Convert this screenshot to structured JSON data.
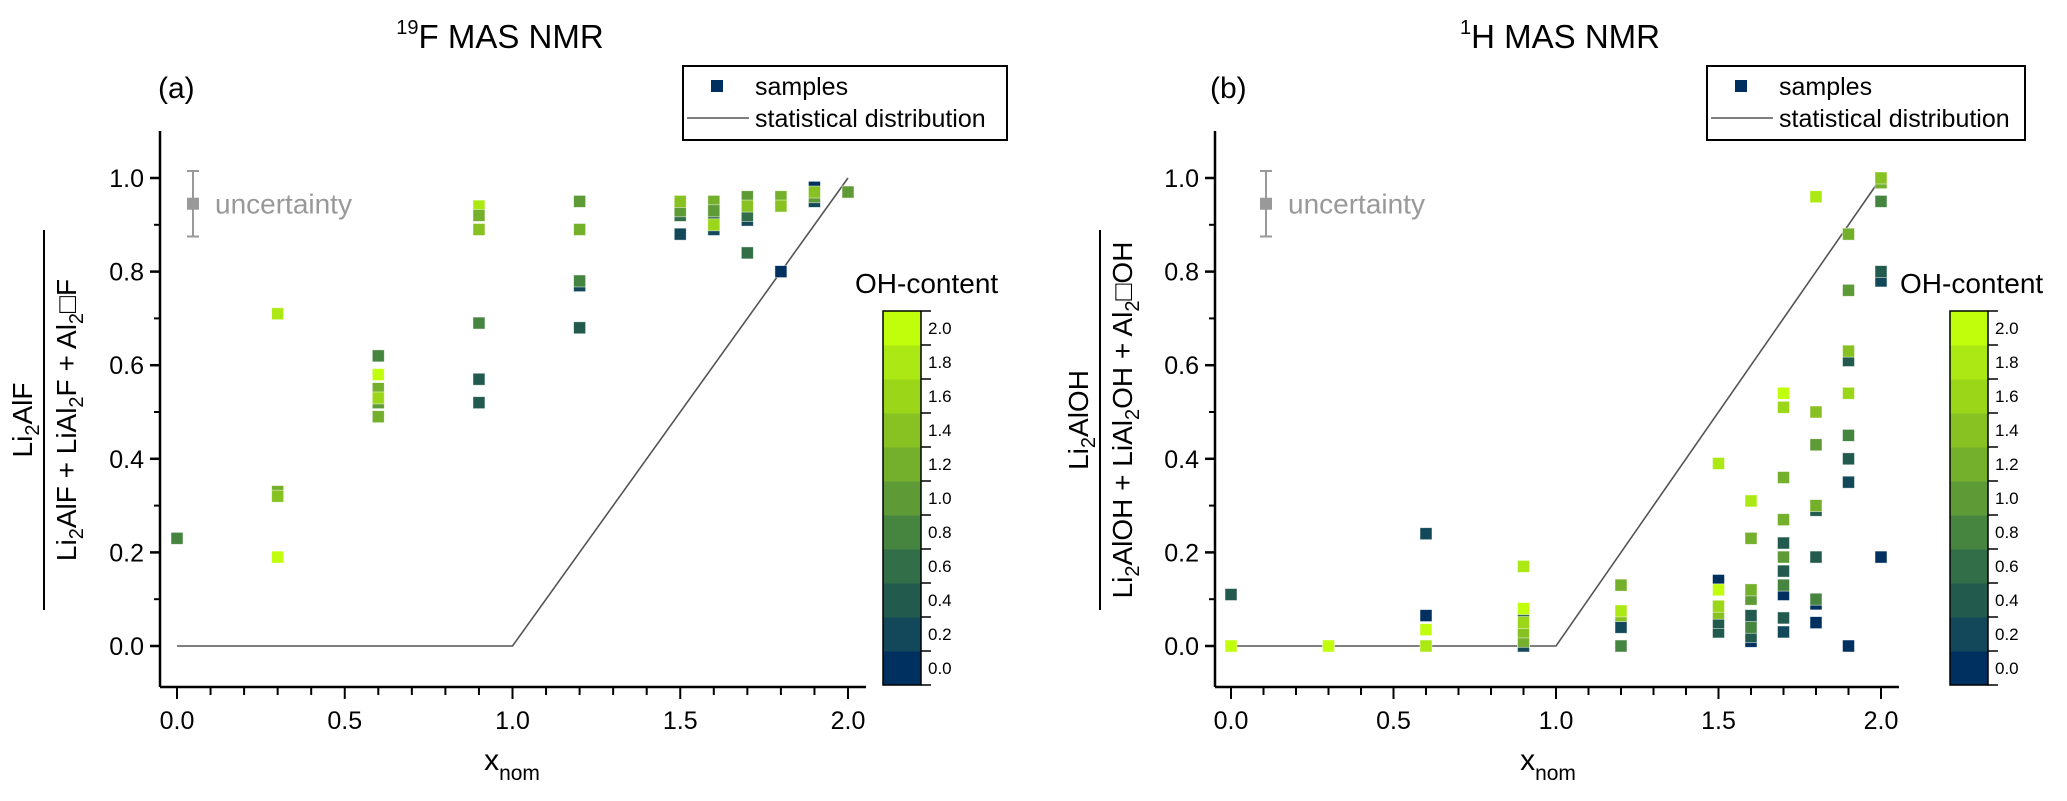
{
  "chart_data": [
    {
      "type": "scatter",
      "panel_label": "(a)",
      "title": "19F MAS NMR",
      "title_parts": {
        "sup": "19",
        "main": "F MAS NMR"
      },
      "xlabel": "x_nom",
      "xlabel_parts": {
        "main": "x",
        "sub": "nom"
      },
      "ylabel": "Li2AlF / (Li2AlF + LiAl2F + Al2□F)",
      "ylabel_parts": {
        "numerator": [
          {
            "t": "Li"
          },
          {
            "t": "2",
            "sub": true
          },
          {
            "t": "AlF"
          }
        ],
        "denominator": [
          {
            "t": "Li"
          },
          {
            "t": "2",
            "sub": true
          },
          {
            "t": "AlF + LiAl"
          },
          {
            "t": "2",
            "sub": true
          },
          {
            "t": "F + Al"
          },
          {
            "t": "2",
            "sub": true
          },
          {
            "t": "□F"
          }
        ]
      },
      "xlim": [
        -0.05,
        2.05
      ],
      "ylim": [
        -0.1,
        1.1
      ],
      "xticks": [
        0.0,
        0.5,
        1.0,
        1.5,
        2.0
      ],
      "xtick_labels": [
        "0.0",
        "0.5",
        "1.0",
        "1.5",
        "2.0"
      ],
      "yticks": [
        0.0,
        0.2,
        0.4,
        0.6,
        0.8,
        1.0
      ],
      "ytick_labels": [
        "0.0",
        "0.2",
        "0.4",
        "0.6",
        "0.8",
        "1.0"
      ],
      "grid": false,
      "legend": {
        "placement": "top-right",
        "entries": [
          "samples",
          "statistical distribution"
        ]
      },
      "annotation": {
        "text": "uncertainty",
        "x": 0.05,
        "y": 0.945,
        "err": 0.07
      },
      "colorbar": {
        "title": "OH-content",
        "ticks": [
          "0.0",
          "0.2",
          "0.4",
          "0.6",
          "0.8",
          "1.0",
          "1.2",
          "1.4",
          "1.6",
          "1.8",
          "2.0"
        ]
      },
      "line": {
        "name": "statistical distribution",
        "x": [
          0.0,
          1.0,
          2.0
        ],
        "y": [
          0.0,
          0.0,
          1.0
        ]
      },
      "series": [
        {
          "name": "samples",
          "points": [
            {
              "x": 0.0,
              "y": 0.23,
              "oh": 0.8
            },
            {
              "x": 0.3,
              "y": 0.71,
              "oh": 1.8
            },
            {
              "x": 0.3,
              "y": 0.33,
              "oh": 1.2
            },
            {
              "x": 0.3,
              "y": 0.32,
              "oh": 1.4
            },
            {
              "x": 0.3,
              "y": 0.19,
              "oh": 2.0
            },
            {
              "x": 0.6,
              "y": 0.62,
              "oh": 0.8
            },
            {
              "x": 0.6,
              "y": 0.58,
              "oh": 2.0
            },
            {
              "x": 0.6,
              "y": 0.55,
              "oh": 1.2
            },
            {
              "x": 0.6,
              "y": 0.52,
              "oh": 1.0
            },
            {
              "x": 0.6,
              "y": 0.53,
              "oh": 1.6
            },
            {
              "x": 0.6,
              "y": 0.49,
              "oh": 1.2
            },
            {
              "x": 0.9,
              "y": 0.94,
              "oh": 1.8
            },
            {
              "x": 0.9,
              "y": 0.92,
              "oh": 1.2
            },
            {
              "x": 0.9,
              "y": 0.89,
              "oh": 1.4
            },
            {
              "x": 0.9,
              "y": 0.69,
              "oh": 0.8
            },
            {
              "x": 0.9,
              "y": 0.57,
              "oh": 0.4
            },
            {
              "x": 0.9,
              "y": 0.52,
              "oh": 0.4
            },
            {
              "x": 1.2,
              "y": 0.95,
              "oh": 1.0
            },
            {
              "x": 1.2,
              "y": 0.89,
              "oh": 1.2
            },
            {
              "x": 1.2,
              "y": 0.77,
              "oh": 0.2
            },
            {
              "x": 1.2,
              "y": 0.78,
              "oh": 0.8
            },
            {
              "x": 1.2,
              "y": 0.68,
              "oh": 0.4
            },
            {
              "x": 1.5,
              "y": 0.92,
              "oh": 0.6
            },
            {
              "x": 1.5,
              "y": 0.93,
              "oh": 1.0
            },
            {
              "x": 1.5,
              "y": 0.95,
              "oh": 1.4
            },
            {
              "x": 1.5,
              "y": 0.88,
              "oh": 0.2
            },
            {
              "x": 1.6,
              "y": 0.89,
              "oh": 0.2
            },
            {
              "x": 1.6,
              "y": 0.92,
              "oh": 0.6
            },
            {
              "x": 1.6,
              "y": 0.95,
              "oh": 1.2
            },
            {
              "x": 1.6,
              "y": 0.93,
              "oh": 1.0
            },
            {
              "x": 1.6,
              "y": 0.9,
              "oh": 1.6
            },
            {
              "x": 1.7,
              "y": 0.91,
              "oh": 0.2
            },
            {
              "x": 1.7,
              "y": 0.92,
              "oh": 0.6
            },
            {
              "x": 1.7,
              "y": 0.96,
              "oh": 1.0
            },
            {
              "x": 1.7,
              "y": 0.94,
              "oh": 1.4
            },
            {
              "x": 1.7,
              "y": 0.84,
              "oh": 0.6
            },
            {
              "x": 1.8,
              "y": 0.96,
              "oh": 1.2
            },
            {
              "x": 1.8,
              "y": 0.94,
              "oh": 1.4
            },
            {
              "x": 1.8,
              "y": 0.8,
              "oh": 0.0
            },
            {
              "x": 1.9,
              "y": 0.98,
              "oh": 0.0
            },
            {
              "x": 1.9,
              "y": 0.95,
              "oh": 0.2
            },
            {
              "x": 1.9,
              "y": 0.96,
              "oh": 1.0
            },
            {
              "x": 1.9,
              "y": 0.97,
              "oh": 1.4
            },
            {
              "x": 2.0,
              "y": 0.97,
              "oh": 1.0
            }
          ]
        }
      ]
    },
    {
      "type": "scatter",
      "panel_label": "(b)",
      "title": "1H MAS NMR",
      "title_parts": {
        "sup": "1",
        "main": "H MAS NMR"
      },
      "xlabel": "x_nom",
      "xlabel_parts": {
        "main": "x",
        "sub": "nom"
      },
      "ylabel": "Li2AlOH / (Li2AlOH + LiAl2OH + Al2□OH)",
      "ylabel_parts": {
        "numerator": [
          {
            "t": "Li"
          },
          {
            "t": "2",
            "sub": true
          },
          {
            "t": "AlOH"
          }
        ],
        "denominator": [
          {
            "t": "Li"
          },
          {
            "t": "2",
            "sub": true
          },
          {
            "t": "AlOH + LiAl"
          },
          {
            "t": "2",
            "sub": true
          },
          {
            "t": "OH + Al"
          },
          {
            "t": "2",
            "sub": true
          },
          {
            "t": "□OH"
          }
        ]
      },
      "xlim": [
        -0.05,
        2.05
      ],
      "ylim": [
        -0.1,
        1.1
      ],
      "xticks": [
        0.0,
        0.5,
        1.0,
        1.5,
        2.0
      ],
      "xtick_labels": [
        "0.0",
        "0.5",
        "1.0",
        "1.5",
        "2.0"
      ],
      "yticks": [
        0.0,
        0.2,
        0.4,
        0.6,
        0.8,
        1.0
      ],
      "ytick_labels": [
        "0.0",
        "0.2",
        "0.4",
        "0.6",
        "0.8",
        "1.0"
      ],
      "grid": false,
      "legend": {
        "placement": "top-right",
        "entries": [
          "samples",
          "statistical distribution"
        ]
      },
      "annotation": {
        "text": "uncertainty",
        "x": 0.11,
        "y": 0.945,
        "err": 0.07
      },
      "colorbar": {
        "title": "OH-content",
        "ticks": [
          "0.0",
          "0.2",
          "0.4",
          "0.6",
          "0.8",
          "1.0",
          "1.2",
          "1.4",
          "1.6",
          "1.8",
          "2.0"
        ]
      },
      "line": {
        "name": "statistical distribution",
        "x": [
          0.0,
          1.0,
          2.0
        ],
        "y": [
          0.0,
          0.0,
          1.0
        ]
      },
      "series": [
        {
          "name": "samples",
          "points": [
            {
              "x": 0.0,
              "y": 0.11,
              "oh": 0.4
            },
            {
              "x": 0.0,
              "y": 0.0,
              "oh": 2.0
            },
            {
              "x": 0.3,
              "y": 0.0,
              "oh": 2.0
            },
            {
              "x": 0.6,
              "y": 0.24,
              "oh": 0.2
            },
            {
              "x": 0.6,
              "y": 0.065,
              "oh": 0.0
            },
            {
              "x": 0.6,
              "y": 0.035,
              "oh": 2.0
            },
            {
              "x": 0.6,
              "y": 0.0,
              "oh": 1.8
            },
            {
              "x": 0.9,
              "y": 0.17,
              "oh": 1.8
            },
            {
              "x": 0.9,
              "y": 0.0,
              "oh": 0.2
            },
            {
              "x": 0.9,
              "y": 0.01,
              "oh": 1.2
            },
            {
              "x": 0.9,
              "y": 0.03,
              "oh": 1.4
            },
            {
              "x": 0.9,
              "y": 0.06,
              "oh": 0.6
            },
            {
              "x": 0.9,
              "y": 0.05,
              "oh": 1.6
            },
            {
              "x": 0.9,
              "y": 0.08,
              "oh": 2.0
            },
            {
              "x": 1.2,
              "y": 0.13,
              "oh": 1.2
            },
            {
              "x": 1.2,
              "y": 0.04,
              "oh": 0.2
            },
            {
              "x": 1.2,
              "y": 0.065,
              "oh": 1.4
            },
            {
              "x": 1.2,
              "y": 0.075,
              "oh": 1.8
            },
            {
              "x": 1.2,
              "y": 0.0,
              "oh": 0.8
            },
            {
              "x": 1.5,
              "y": 0.39,
              "oh": 1.8
            },
            {
              "x": 1.5,
              "y": 0.14,
              "oh": 0.0
            },
            {
              "x": 1.5,
              "y": 0.03,
              "oh": 0.4
            },
            {
              "x": 1.5,
              "y": 0.05,
              "oh": 0.4
            },
            {
              "x": 1.5,
              "y": 0.07,
              "oh": 1.4
            },
            {
              "x": 1.5,
              "y": 0.085,
              "oh": 1.6
            },
            {
              "x": 1.5,
              "y": 0.12,
              "oh": 2.0
            },
            {
              "x": 1.6,
              "y": 0.31,
              "oh": 1.8
            },
            {
              "x": 1.6,
              "y": 0.23,
              "oh": 1.2
            },
            {
              "x": 1.6,
              "y": 0.01,
              "oh": 0.0
            },
            {
              "x": 1.6,
              "y": 0.02,
              "oh": 0.4
            },
            {
              "x": 1.6,
              "y": 0.04,
              "oh": 0.8
            },
            {
              "x": 1.6,
              "y": 0.065,
              "oh": 0.4
            },
            {
              "x": 1.6,
              "y": 0.1,
              "oh": 1.0
            },
            {
              "x": 1.6,
              "y": 0.12,
              "oh": 1.2
            },
            {
              "x": 1.7,
              "y": 0.54,
              "oh": 2.0
            },
            {
              "x": 1.7,
              "y": 0.51,
              "oh": 1.6
            },
            {
              "x": 1.7,
              "y": 0.36,
              "oh": 1.2
            },
            {
              "x": 1.7,
              "y": 0.27,
              "oh": 1.2
            },
            {
              "x": 1.7,
              "y": 0.22,
              "oh": 0.4
            },
            {
              "x": 1.7,
              "y": 0.16,
              "oh": 0.4
            },
            {
              "x": 1.7,
              "y": 0.19,
              "oh": 1.0
            },
            {
              "x": 1.7,
              "y": 0.11,
              "oh": 0.0
            },
            {
              "x": 1.7,
              "y": 0.13,
              "oh": 0.8
            },
            {
              "x": 1.7,
              "y": 0.03,
              "oh": 0.2
            },
            {
              "x": 1.7,
              "y": 0.06,
              "oh": 0.4
            },
            {
              "x": 1.8,
              "y": 0.96,
              "oh": 1.8
            },
            {
              "x": 1.8,
              "y": 0.5,
              "oh": 1.4
            },
            {
              "x": 1.8,
              "y": 0.43,
              "oh": 1.0
            },
            {
              "x": 1.8,
              "y": 0.29,
              "oh": 0.4
            },
            {
              "x": 1.8,
              "y": 0.3,
              "oh": 1.2
            },
            {
              "x": 1.8,
              "y": 0.19,
              "oh": 0.4
            },
            {
              "x": 1.8,
              "y": 0.09,
              "oh": 0.0
            },
            {
              "x": 1.8,
              "y": 0.1,
              "oh": 0.8
            },
            {
              "x": 1.8,
              "y": 0.05,
              "oh": 0.0
            },
            {
              "x": 1.9,
              "y": 0.88,
              "oh": 1.2
            },
            {
              "x": 1.9,
              "y": 0.76,
              "oh": 1.0
            },
            {
              "x": 1.9,
              "y": 0.61,
              "oh": 0.4
            },
            {
              "x": 1.9,
              "y": 0.63,
              "oh": 1.4
            },
            {
              "x": 1.9,
              "y": 0.54,
              "oh": 1.6
            },
            {
              "x": 1.9,
              "y": 0.45,
              "oh": 0.8
            },
            {
              "x": 1.9,
              "y": 0.4,
              "oh": 0.4
            },
            {
              "x": 1.9,
              "y": 0.35,
              "oh": 0.2
            },
            {
              "x": 1.9,
              "y": 0.0,
              "oh": 0.0
            },
            {
              "x": 2.0,
              "y": 0.99,
              "oh": 1.2
            },
            {
              "x": 2.0,
              "y": 1.0,
              "oh": 1.4
            },
            {
              "x": 2.0,
              "y": 0.95,
              "oh": 0.8
            },
            {
              "x": 2.0,
              "y": 0.78,
              "oh": 0.2
            },
            {
              "x": 2.0,
              "y": 0.8,
              "oh": 0.4
            },
            {
              "x": 2.0,
              "y": 0.19,
              "oh": 0.0
            }
          ]
        }
      ]
    }
  ],
  "colormap": {
    "levels": [
      0.0,
      0.2,
      0.4,
      0.6,
      0.8,
      1.0,
      1.2,
      1.4,
      1.6,
      1.8,
      2.0
    ],
    "colors": [
      "#003060",
      "#13485a",
      "#235a4e",
      "#326e48",
      "#468540",
      "#5e9a36",
      "#74b02c",
      "#88c222",
      "#9cd619",
      "#ace814",
      "#c0fe0c"
    ]
  },
  "colors": {
    "legend_marker": "#003060",
    "line": "#555555",
    "uncertainty": "#999999",
    "axis": "#000000"
  }
}
